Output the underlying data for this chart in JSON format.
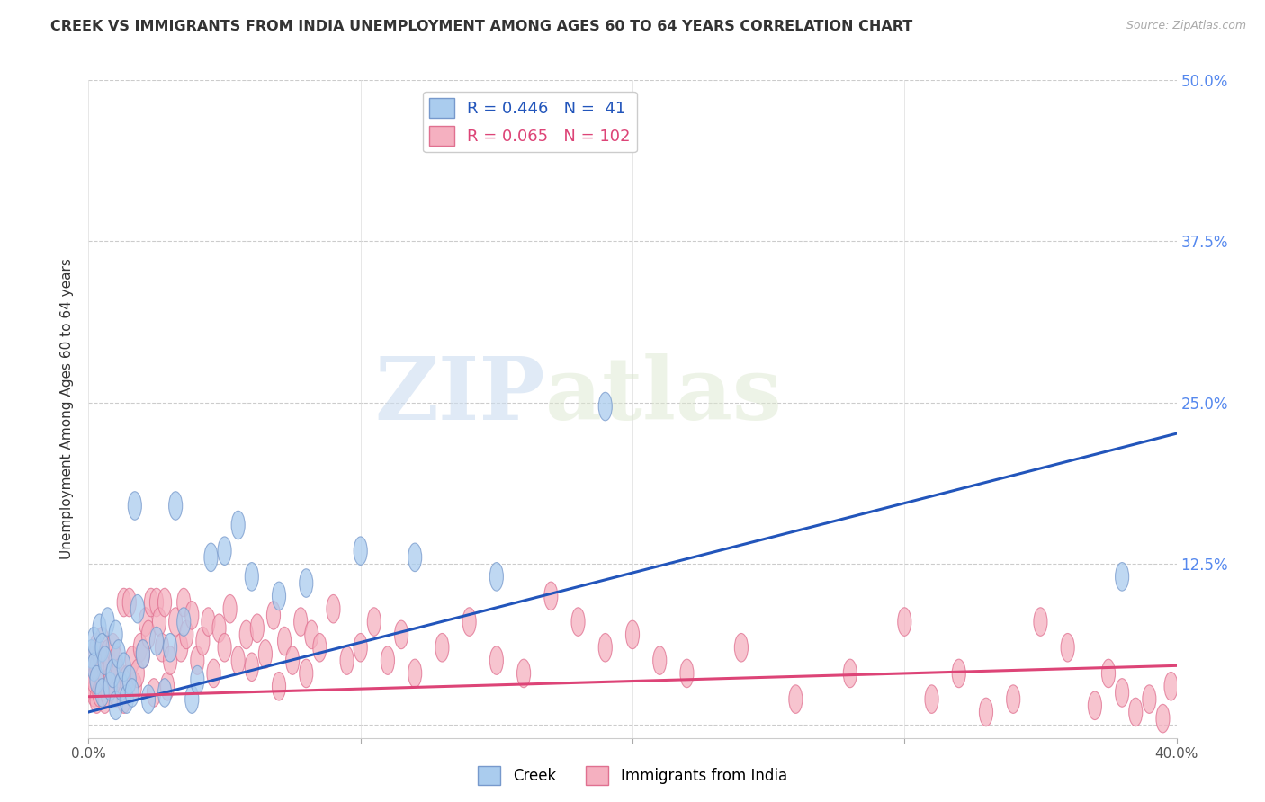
{
  "title": "CREEK VS IMMIGRANTS FROM INDIA UNEMPLOYMENT AMONG AGES 60 TO 64 YEARS CORRELATION CHART",
  "source": "Source: ZipAtlas.com",
  "ylabel": "Unemployment Among Ages 60 to 64 years",
  "xlim": [
    0.0,
    0.4
  ],
  "ylim": [
    -0.01,
    0.5
  ],
  "xticks": [
    0.0,
    0.1,
    0.2,
    0.3,
    0.4
  ],
  "yticks": [
    0.0,
    0.125,
    0.25,
    0.375,
    0.5
  ],
  "xtick_labels": [
    "0.0%",
    "",
    "",
    "",
    "40.0%"
  ],
  "ytick_labels_right": [
    "50.0%",
    "37.5%",
    "25.0%",
    "12.5%",
    ""
  ],
  "background_color": "#ffffff",
  "grid_color": "#cccccc",
  "creek_color": "#aaccee",
  "creek_edge_color": "#7799cc",
  "india_color": "#f5b0c0",
  "india_edge_color": "#e07090",
  "creek_line_color": "#2255bb",
  "india_line_color": "#dd4477",
  "creek_R": 0.446,
  "creek_N": 41,
  "india_R": 0.065,
  "india_N": 102,
  "creek_slope": 0.54,
  "creek_intercept": 0.01,
  "india_slope": 0.06,
  "india_intercept": 0.022,
  "watermark_zip": "ZIP",
  "watermark_atlas": "atlas",
  "creek_x": [
    0.001,
    0.002,
    0.002,
    0.003,
    0.004,
    0.005,
    0.005,
    0.006,
    0.007,
    0.008,
    0.009,
    0.01,
    0.01,
    0.011,
    0.012,
    0.013,
    0.014,
    0.015,
    0.016,
    0.017,
    0.018,
    0.02,
    0.022,
    0.025,
    0.028,
    0.03,
    0.032,
    0.035,
    0.038,
    0.04,
    0.045,
    0.05,
    0.055,
    0.06,
    0.07,
    0.08,
    0.1,
    0.12,
    0.15,
    0.19,
    0.38
  ],
  "creek_y": [
    0.055,
    0.045,
    0.065,
    0.035,
    0.075,
    0.025,
    0.06,
    0.05,
    0.08,
    0.03,
    0.04,
    0.07,
    0.015,
    0.055,
    0.03,
    0.045,
    0.02,
    0.035,
    0.025,
    0.17,
    0.09,
    0.055,
    0.02,
    0.065,
    0.025,
    0.06,
    0.17,
    0.08,
    0.02,
    0.035,
    0.13,
    0.135,
    0.155,
    0.115,
    0.1,
    0.11,
    0.135,
    0.13,
    0.115,
    0.247,
    0.115
  ],
  "india_x": [
    0.001,
    0.001,
    0.002,
    0.002,
    0.002,
    0.003,
    0.003,
    0.003,
    0.004,
    0.004,
    0.005,
    0.005,
    0.005,
    0.006,
    0.006,
    0.007,
    0.007,
    0.008,
    0.008,
    0.009,
    0.01,
    0.01,
    0.011,
    0.012,
    0.013,
    0.013,
    0.014,
    0.015,
    0.016,
    0.017,
    0.018,
    0.019,
    0.02,
    0.021,
    0.022,
    0.023,
    0.024,
    0.025,
    0.026,
    0.027,
    0.028,
    0.029,
    0.03,
    0.032,
    0.034,
    0.035,
    0.036,
    0.038,
    0.04,
    0.042,
    0.044,
    0.046,
    0.048,
    0.05,
    0.052,
    0.055,
    0.058,
    0.06,
    0.062,
    0.065,
    0.068,
    0.07,
    0.072,
    0.075,
    0.078,
    0.08,
    0.082,
    0.085,
    0.09,
    0.095,
    0.1,
    0.105,
    0.11,
    0.115,
    0.12,
    0.13,
    0.14,
    0.15,
    0.16,
    0.17,
    0.18,
    0.19,
    0.2,
    0.21,
    0.22,
    0.24,
    0.26,
    0.28,
    0.3,
    0.31,
    0.32,
    0.33,
    0.34,
    0.35,
    0.36,
    0.37,
    0.375,
    0.38,
    0.385,
    0.39,
    0.395,
    0.398
  ],
  "india_y": [
    0.03,
    0.04,
    0.025,
    0.05,
    0.035,
    0.02,
    0.045,
    0.06,
    0.025,
    0.055,
    0.03,
    0.05,
    0.065,
    0.04,
    0.02,
    0.055,
    0.025,
    0.045,
    0.035,
    0.06,
    0.05,
    0.025,
    0.04,
    0.03,
    0.095,
    0.02,
    0.035,
    0.095,
    0.05,
    0.03,
    0.04,
    0.06,
    0.055,
    0.08,
    0.07,
    0.095,
    0.025,
    0.095,
    0.08,
    0.06,
    0.095,
    0.03,
    0.05,
    0.08,
    0.06,
    0.095,
    0.07,
    0.085,
    0.05,
    0.065,
    0.08,
    0.04,
    0.075,
    0.06,
    0.09,
    0.05,
    0.07,
    0.045,
    0.075,
    0.055,
    0.085,
    0.03,
    0.065,
    0.05,
    0.08,
    0.04,
    0.07,
    0.06,
    0.09,
    0.05,
    0.06,
    0.08,
    0.05,
    0.07,
    0.04,
    0.06,
    0.08,
    0.05,
    0.04,
    0.1,
    0.08,
    0.06,
    0.07,
    0.05,
    0.04,
    0.06,
    0.02,
    0.04,
    0.08,
    0.02,
    0.04,
    0.01,
    0.02,
    0.08,
    0.06,
    0.015,
    0.04,
    0.025,
    0.01,
    0.02,
    0.005,
    0.03
  ]
}
